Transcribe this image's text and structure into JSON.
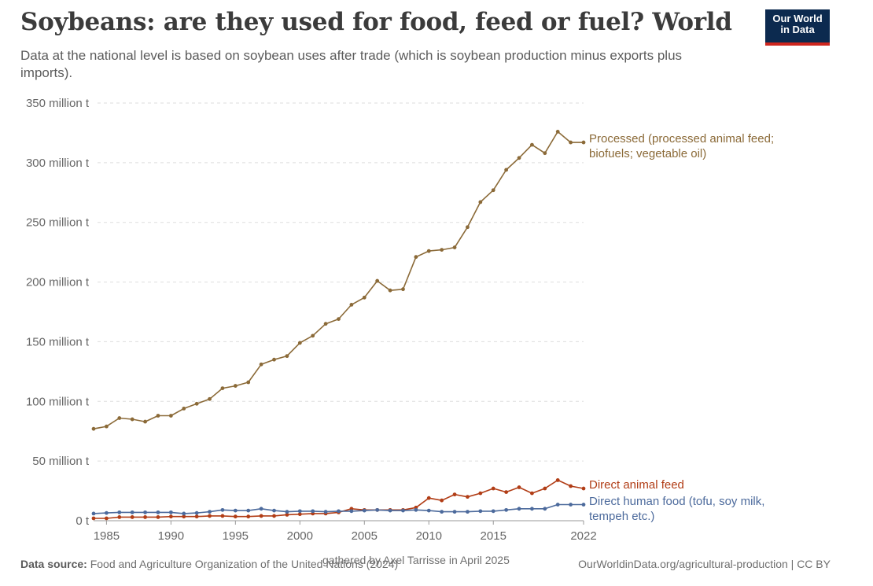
{
  "header": {
    "title": "Soybeans: are they used for food, feed or fuel? World",
    "subtitle": "Data at the national level is based on soybean uses after trade (which is soybean production minus exports plus imports).",
    "logo_line1": "Our World",
    "logo_line2": "in Data"
  },
  "footer": {
    "source_label": "Data source:",
    "source_text": "Food and Agriculture Organization of the United Nations (2024)",
    "gathered": "gathered by Axel Tarrisse in April 2025",
    "url_license": "OurWorldinData.org/agricultural-production | CC BY"
  },
  "colors": {
    "processed": "#8b6a38",
    "feed": "#b13d16",
    "food": "#4c6a9c",
    "grid": "#dddddd",
    "axis_text": "#666666"
  },
  "chart_data": {
    "type": "line",
    "title": "Soybeans: are they used for food, feed or fuel? World",
    "xlabel": "",
    "ylabel": "",
    "xlim": [
      1984,
      2022
    ],
    "ylim": [
      0,
      350
    ],
    "unit": "million t",
    "y_ticks": [
      0,
      50,
      100,
      150,
      200,
      250,
      300,
      350
    ],
    "y_tick_labels": [
      "0 t",
      "50 million t",
      "100 million t",
      "150 million t",
      "200 million t",
      "250 million t",
      "300 million t",
      "350 million t"
    ],
    "x_ticks": [
      1985,
      1990,
      1995,
      2000,
      2005,
      2010,
      2015,
      2022
    ],
    "x_tick_labels": [
      "1985",
      "1990",
      "1995",
      "2000",
      "2005",
      "2010",
      "2015",
      "2022"
    ],
    "grid": "horizontal dashed",
    "legend": "inline labels at line ends (right)",
    "x": [
      1984,
      1985,
      1986,
      1987,
      1988,
      1989,
      1990,
      1991,
      1992,
      1993,
      1994,
      1995,
      1996,
      1997,
      1998,
      1999,
      2000,
      2001,
      2002,
      2003,
      2004,
      2005,
      2006,
      2007,
      2008,
      2009,
      2010,
      2011,
      2012,
      2013,
      2014,
      2015,
      2016,
      2017,
      2018,
      2019,
      2020,
      2021,
      2022
    ],
    "series": [
      {
        "name": "Processed (processed animal feed; biofuels; vegetable oil)",
        "label_lines": [
          "Processed (processed animal feed;",
          "biofuels; vegetable oil)"
        ],
        "color_key": "processed",
        "values": [
          77,
          79,
          86,
          85,
          83,
          88,
          88,
          94,
          98,
          102,
          111,
          113,
          116,
          131,
          135,
          138,
          149,
          155,
          165,
          169,
          181,
          187,
          201,
          193,
          194,
          221,
          226,
          227,
          229,
          246,
          267,
          277,
          294,
          304,
          315,
          308,
          326,
          317,
          317
        ]
      },
      {
        "name": "Direct animal feed",
        "label_lines": [
          "Direct animal feed"
        ],
        "color_key": "feed",
        "values": [
          2,
          2,
          3,
          3,
          3,
          3,
          3.5,
          3.5,
          3.5,
          4,
          4,
          3.5,
          3.5,
          4,
          4,
          5,
          5.5,
          6,
          6,
          7,
          10,
          9,
          9,
          9,
          9,
          11,
          19,
          17,
          22,
          20,
          23,
          27,
          24,
          28,
          23,
          27,
          34,
          29,
          27
        ]
      },
      {
        "name": "Direct human food (tofu, soy milk, tempeh etc.)",
        "label_lines": [
          "Direct human food (tofu, soy milk,",
          "tempeh etc.)"
        ],
        "color_key": "food",
        "values": [
          6,
          6.5,
          7,
          7,
          7,
          7,
          7,
          6,
          6.5,
          7.5,
          9,
          8.5,
          8.5,
          10,
          8.5,
          7.5,
          8,
          8,
          7.5,
          8,
          8,
          8.5,
          9,
          8.5,
          8.5,
          9,
          8.5,
          7.5,
          7.5,
          7.5,
          8,
          8,
          9,
          10,
          10,
          10,
          13.5,
          13.5,
          13.5
        ]
      }
    ]
  }
}
